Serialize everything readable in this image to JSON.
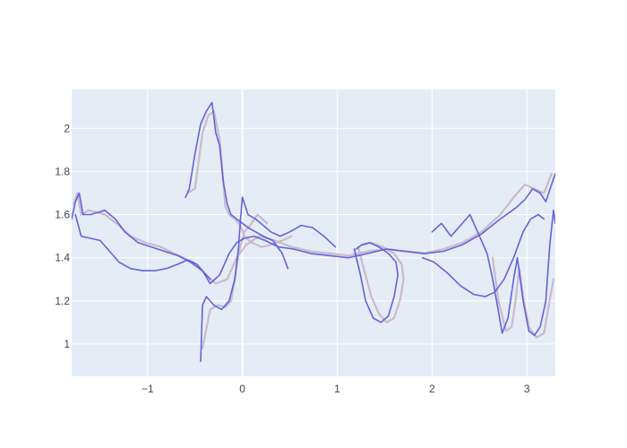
{
  "chart_data": {
    "type": "line",
    "title": "",
    "xlabel": "",
    "ylabel": "",
    "xlim": [
      -1.8,
      3.3
    ],
    "ylim": [
      0.85,
      2.18
    ],
    "grid": true,
    "x_ticks": [
      -1,
      0,
      1,
      2,
      3
    ],
    "x_tick_labels": [
      "−1",
      "0",
      "1",
      "2",
      "3"
    ],
    "y_ticks": [
      1,
      1.2,
      1.4,
      1.6,
      1.8,
      2
    ],
    "y_tick_labels": [
      "1",
      "1.2",
      "1.4",
      "1.6",
      "1.8",
      "2"
    ],
    "series": [
      {
        "color": "#c8b4c8",
        "x": [
          -1.78,
          -1.74,
          -1.7,
          -1.62,
          -1.45,
          -1.3,
          -1.18,
          -1.02,
          -0.86,
          -0.72,
          -0.52,
          -0.38,
          -0.28,
          -0.16,
          -0.06,
          0.04,
          0.18,
          0.34,
          0.52,
          0.72,
          0.92,
          1.12,
          1.32,
          1.52,
          1.72,
          1.92,
          2.12,
          2.32,
          2.52,
          2.72,
          2.86,
          2.98,
          3.08,
          3.18,
          3.26
        ],
        "y": [
          1.65,
          1.7,
          1.6,
          1.62,
          1.6,
          1.55,
          1.5,
          1.47,
          1.45,
          1.42,
          1.38,
          1.32,
          1.28,
          1.3,
          1.4,
          1.46,
          1.5,
          1.48,
          1.45,
          1.43,
          1.42,
          1.41,
          1.43,
          1.44,
          1.43,
          1.42,
          1.44,
          1.47,
          1.52,
          1.6,
          1.68,
          1.74,
          1.72,
          1.7,
          1.79
        ]
      },
      {
        "color": "#c8b4c8",
        "x": [
          -0.58,
          -0.5,
          -0.42,
          -0.36,
          -0.3,
          -0.24,
          -0.2,
          -0.18,
          -0.14,
          -0.08,
          -0.02,
          0.02,
          0.1,
          0.2,
          0.3,
          0.42,
          0.52
        ],
        "y": [
          1.7,
          1.72,
          1.98,
          2.06,
          2.08,
          1.95,
          1.75,
          1.64,
          1.6,
          1.58,
          1.55,
          1.5,
          1.47,
          1.45,
          1.46,
          1.48,
          1.5
        ]
      },
      {
        "color": "#c8b4c8",
        "x": [
          -0.42,
          -0.34,
          -0.26,
          -0.18,
          -0.12,
          -0.08,
          -0.04,
          0.02,
          0.08,
          0.16,
          0.26
        ],
        "y": [
          0.98,
          1.16,
          1.18,
          1.17,
          1.2,
          1.3,
          1.42,
          1.52,
          1.55,
          1.6,
          1.56
        ]
      },
      {
        "color": "#c8b4c8",
        "x": [
          1.22,
          1.28,
          1.36,
          1.44,
          1.52,
          1.6,
          1.66,
          1.7,
          1.68,
          1.6,
          1.48,
          1.36,
          1.28
        ],
        "y": [
          1.45,
          1.35,
          1.22,
          1.14,
          1.1,
          1.12,
          1.2,
          1.3,
          1.37,
          1.42,
          1.45,
          1.47,
          1.46
        ]
      },
      {
        "color": "#c8b4c8",
        "x": [
          2.64,
          2.7,
          2.78,
          2.84,
          2.88,
          2.92,
          2.96,
          3.02,
          3.1,
          3.18,
          3.24,
          3.28
        ],
        "y": [
          1.4,
          1.2,
          1.06,
          1.08,
          1.2,
          1.35,
          1.22,
          1.08,
          1.03,
          1.05,
          1.2,
          1.3
        ]
      },
      {
        "color": "#5c5cdc",
        "x": [
          -1.8,
          -1.76,
          -1.72,
          -1.68,
          -1.6,
          -1.45,
          -1.34,
          -1.24,
          -1.1,
          -0.96,
          -0.82,
          -0.68,
          -0.55,
          -0.42,
          -0.34,
          -0.24,
          -0.14,
          -0.06,
          0.02,
          0.12,
          0.24,
          0.38,
          0.54,
          0.72,
          0.92,
          1.12,
          1.32,
          1.52,
          1.72,
          1.92,
          2.12,
          2.32,
          2.52,
          2.72,
          2.88,
          2.98,
          3.06,
          3.14,
          3.2,
          3.26,
          3.3
        ],
        "y": [
          1.58,
          1.66,
          1.7,
          1.6,
          1.6,
          1.62,
          1.58,
          1.52,
          1.47,
          1.45,
          1.43,
          1.41,
          1.38,
          1.34,
          1.28,
          1.32,
          1.42,
          1.47,
          1.49,
          1.5,
          1.48,
          1.45,
          1.44,
          1.42,
          1.41,
          1.4,
          1.42,
          1.44,
          1.43,
          1.42,
          1.43,
          1.46,
          1.51,
          1.58,
          1.63,
          1.67,
          1.72,
          1.7,
          1.66,
          1.74,
          1.79
        ]
      },
      {
        "color": "#5c5cdc",
        "x": [
          -1.76,
          -1.7,
          -1.6,
          -1.5,
          -1.42,
          -1.3,
          -1.18,
          -1.05,
          -0.92,
          -0.8,
          -0.68,
          -0.58,
          -0.48,
          -0.4,
          -0.34
        ],
        "y": [
          1.6,
          1.5,
          1.49,
          1.48,
          1.44,
          1.38,
          1.35,
          1.34,
          1.34,
          1.35,
          1.37,
          1.39,
          1.37,
          1.33,
          1.3
        ]
      },
      {
        "color": "#5c5cdc",
        "x": [
          -0.6,
          -0.56,
          -0.5,
          -0.44,
          -0.38,
          -0.32,
          -0.28,
          -0.24,
          -0.2,
          -0.16,
          -0.12,
          -0.06,
          0.0,
          0.06,
          0.14,
          0.22,
          0.32,
          0.42,
          0.48
        ],
        "y": [
          1.68,
          1.72,
          1.88,
          2.02,
          2.08,
          2.12,
          1.98,
          1.92,
          1.75,
          1.65,
          1.6,
          1.58,
          1.56,
          1.54,
          1.52,
          1.5,
          1.48,
          1.42,
          1.35
        ]
      },
      {
        "color": "#5c5cdc",
        "x": [
          -0.44,
          -0.42,
          -0.38,
          -0.3,
          -0.22,
          -0.14,
          -0.08,
          -0.04,
          -0.02,
          0.0,
          0.06,
          0.14,
          0.22,
          0.3,
          0.4,
          0.5,
          0.62,
          0.74,
          0.86,
          0.98
        ],
        "y": [
          0.92,
          1.18,
          1.22,
          1.18,
          1.16,
          1.2,
          1.3,
          1.45,
          1.58,
          1.68,
          1.6,
          1.58,
          1.55,
          1.52,
          1.5,
          1.52,
          1.55,
          1.54,
          1.5,
          1.45
        ]
      },
      {
        "color": "#5c5cdc",
        "x": [
          1.18,
          1.24,
          1.3,
          1.38,
          1.46,
          1.54,
          1.6,
          1.64,
          1.62,
          1.54,
          1.44,
          1.34,
          1.26,
          1.2
        ],
        "y": [
          1.44,
          1.33,
          1.2,
          1.12,
          1.1,
          1.13,
          1.22,
          1.32,
          1.38,
          1.42,
          1.45,
          1.47,
          1.46,
          1.44
        ]
      },
      {
        "color": "#5c5cdc",
        "x": [
          2.0,
          2.1,
          2.2,
          2.3,
          2.4,
          2.5,
          2.58,
          2.64,
          2.7,
          2.74,
          2.8,
          2.86,
          2.9,
          2.96,
          3.02,
          3.08,
          3.14,
          3.2,
          3.24,
          3.28,
          3.3
        ],
        "y": [
          1.52,
          1.56,
          1.5,
          1.55,
          1.6,
          1.5,
          1.42,
          1.3,
          1.15,
          1.05,
          1.12,
          1.3,
          1.4,
          1.2,
          1.06,
          1.04,
          1.08,
          1.2,
          1.45,
          1.62,
          1.56
        ]
      },
      {
        "color": "#5c5cdc",
        "x": [
          1.9,
          2.02,
          2.16,
          2.3,
          2.44,
          2.56,
          2.66,
          2.76,
          2.86,
          2.96,
          3.04,
          3.12,
          3.18
        ],
        "y": [
          1.4,
          1.38,
          1.33,
          1.27,
          1.23,
          1.22,
          1.24,
          1.3,
          1.4,
          1.52,
          1.58,
          1.6,
          1.58
        ]
      }
    ]
  }
}
